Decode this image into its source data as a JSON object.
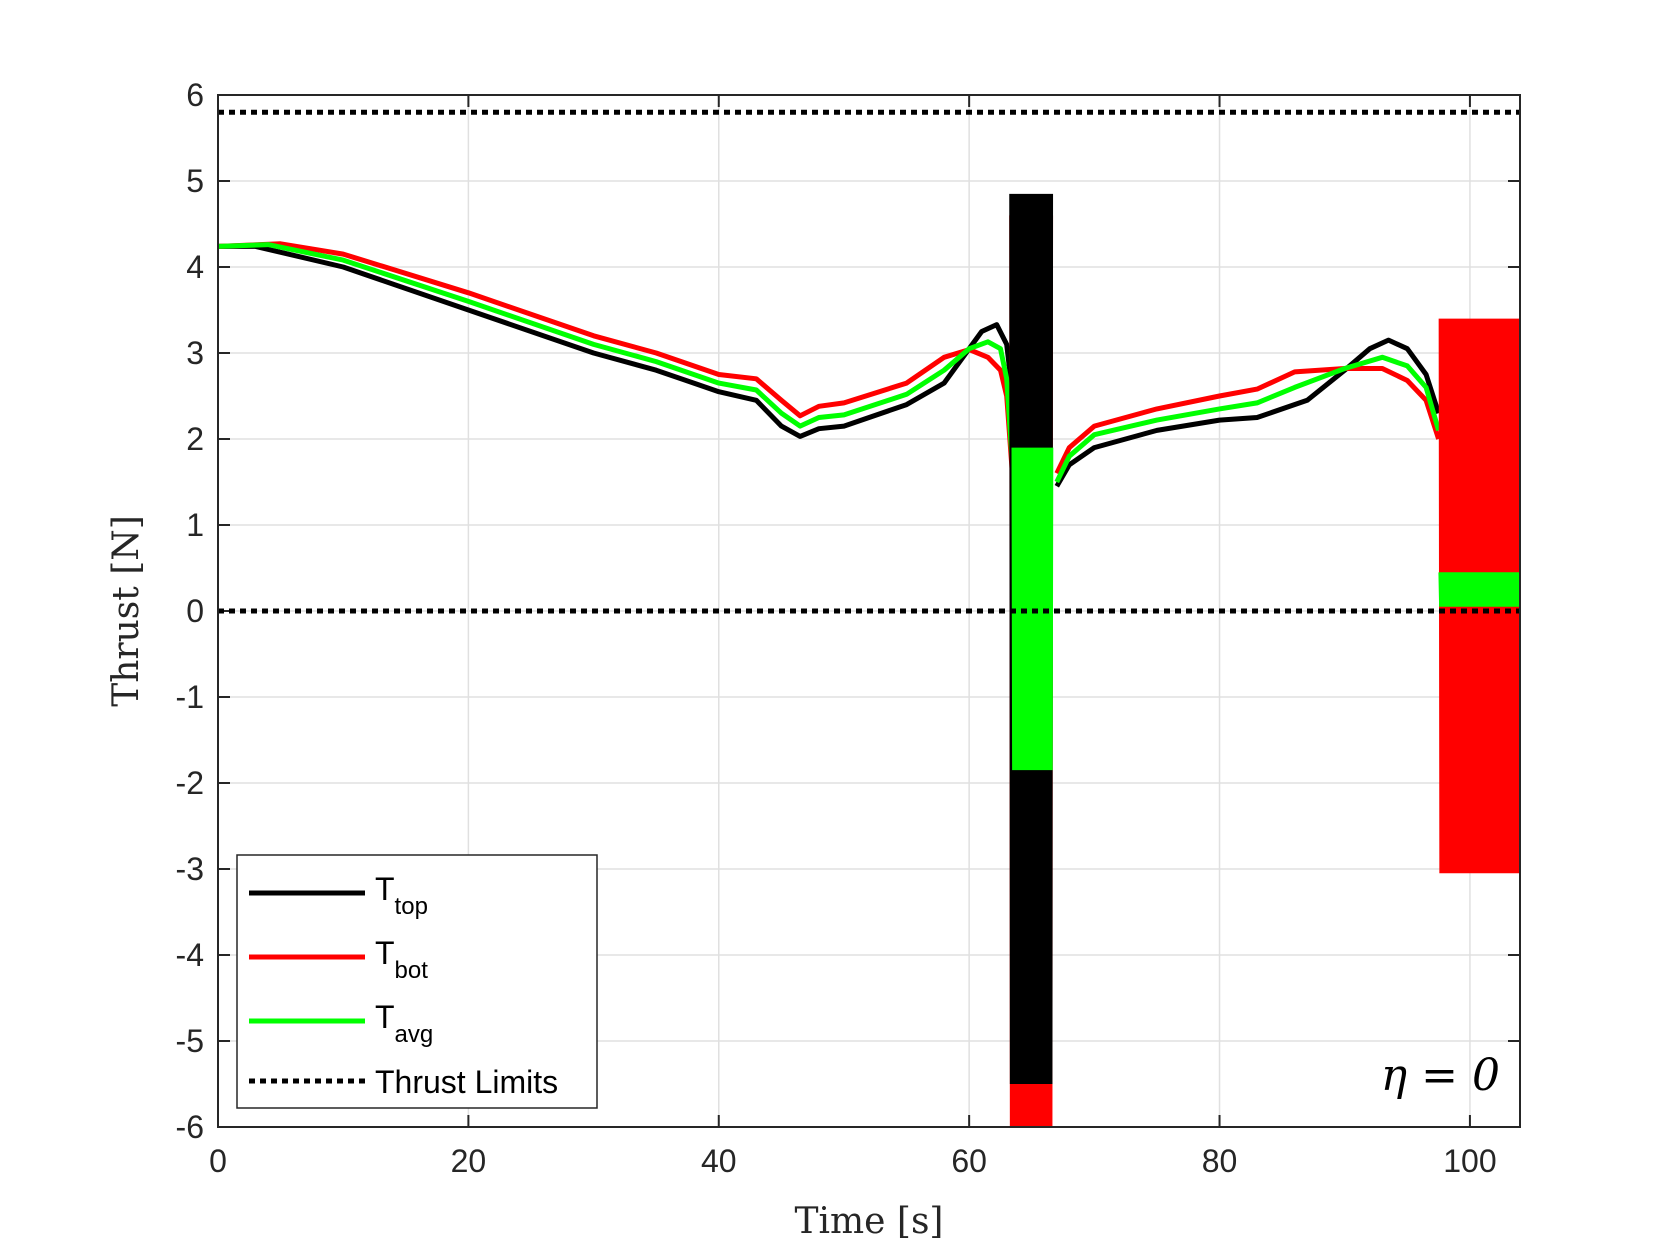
{
  "chart_data": {
    "type": "line",
    "title": "",
    "xlabel": "Time [s]",
    "ylabel": "Thrust [N]",
    "xlim": [
      0,
      104
    ],
    "ylim": [
      -6,
      6
    ],
    "xticks": [
      0,
      20,
      40,
      60,
      80,
      100
    ],
    "yticks": [
      6,
      5,
      4,
      3,
      2,
      1,
      0,
      -1,
      -2,
      -3,
      -4,
      -5,
      -6
    ],
    "grid": true,
    "legend_position": "bottom-left",
    "annotation": "η = 0",
    "colors": {
      "top": "#000000",
      "bot": "#ff0000",
      "avg": "#00ff00",
      "limits": "#000000"
    },
    "series": [
      {
        "key": "top",
        "name": "T",
        "sub": "top",
        "x": [
          0,
          3,
          10,
          20,
          30,
          35,
          40,
          43,
          45,
          46.5,
          48,
          50,
          55,
          58,
          61,
          62.2,
          63,
          63.4,
          63.6
        ],
        "y": [
          4.24,
          4.24,
          4.0,
          3.5,
          3.0,
          2.8,
          2.55,
          2.45,
          2.15,
          2.03,
          2.12,
          2.15,
          2.4,
          2.65,
          3.25,
          3.33,
          3.1,
          2.6,
          1.2
        ],
        "x2": [
          67,
          68,
          70,
          75,
          80,
          83,
          87,
          90,
          92,
          93.5,
          95,
          96.5,
          97.5
        ],
        "y2": [
          1.45,
          1.7,
          1.9,
          2.1,
          2.22,
          2.25,
          2.45,
          2.8,
          3.05,
          3.15,
          3.05,
          2.75,
          2.3
        ]
      },
      {
        "key": "bot",
        "name": "T",
        "sub": "bot",
        "x": [
          0,
          5,
          10,
          20,
          30,
          35,
          40,
          43,
          45,
          46.5,
          48,
          50,
          55,
          58,
          60,
          61.5,
          62.5,
          63,
          63.5
        ],
        "y": [
          4.24,
          4.27,
          4.15,
          3.7,
          3.2,
          3.0,
          2.75,
          2.7,
          2.45,
          2.27,
          2.38,
          2.42,
          2.65,
          2.95,
          3.04,
          2.95,
          2.8,
          2.5,
          1.5
        ],
        "x2": [
          67,
          68,
          70,
          75,
          80,
          83,
          86,
          90,
          93,
          95,
          96.5,
          97.5
        ],
        "y2": [
          1.6,
          1.9,
          2.15,
          2.35,
          2.5,
          2.58,
          2.78,
          2.82,
          2.82,
          2.68,
          2.45,
          2.0
        ]
      },
      {
        "key": "avg",
        "name": "T",
        "sub": "avg",
        "x": [
          0,
          4,
          10,
          20,
          30,
          35,
          40,
          43,
          45,
          46.5,
          48,
          50,
          55,
          58,
          60,
          61.5,
          62.5,
          63,
          63.5
        ],
        "y": [
          4.24,
          4.26,
          4.08,
          3.6,
          3.1,
          2.9,
          2.65,
          2.57,
          2.3,
          2.15,
          2.25,
          2.28,
          2.52,
          2.8,
          3.05,
          3.13,
          3.05,
          2.7,
          1.6
        ],
        "x2": [
          67,
          68,
          70,
          75,
          80,
          83,
          86,
          90,
          93,
          95,
          96.5,
          97.5
        ],
        "y2": [
          1.5,
          1.8,
          2.05,
          2.22,
          2.35,
          2.42,
          2.6,
          2.82,
          2.95,
          2.85,
          2.6,
          2.1
        ]
      },
      {
        "key": "limits",
        "name": "Thrust Limits",
        "upper": 5.8,
        "lower": 0
      }
    ],
    "oscillation_bursts": [
      {
        "series": "bot",
        "x_range": [
          63.3,
          66.6
        ],
        "y_range": [
          -6,
          4.6
        ]
      },
      {
        "series": "top",
        "x_range": [
          63.3,
          66.6
        ],
        "y_range": [
          -5.5,
          4.85
        ]
      },
      {
        "series": "avg",
        "x_range": [
          63.5,
          66.6
        ],
        "y_range": [
          -1.85,
          1.9
        ]
      },
      {
        "series": "bot",
        "x_range": [
          97.6,
          104
        ],
        "y_range": [
          -3.05,
          3.4
        ]
      },
      {
        "series": "avg",
        "x_range": [
          97.6,
          104
        ],
        "y_range": [
          0.05,
          0.45
        ]
      }
    ]
  }
}
